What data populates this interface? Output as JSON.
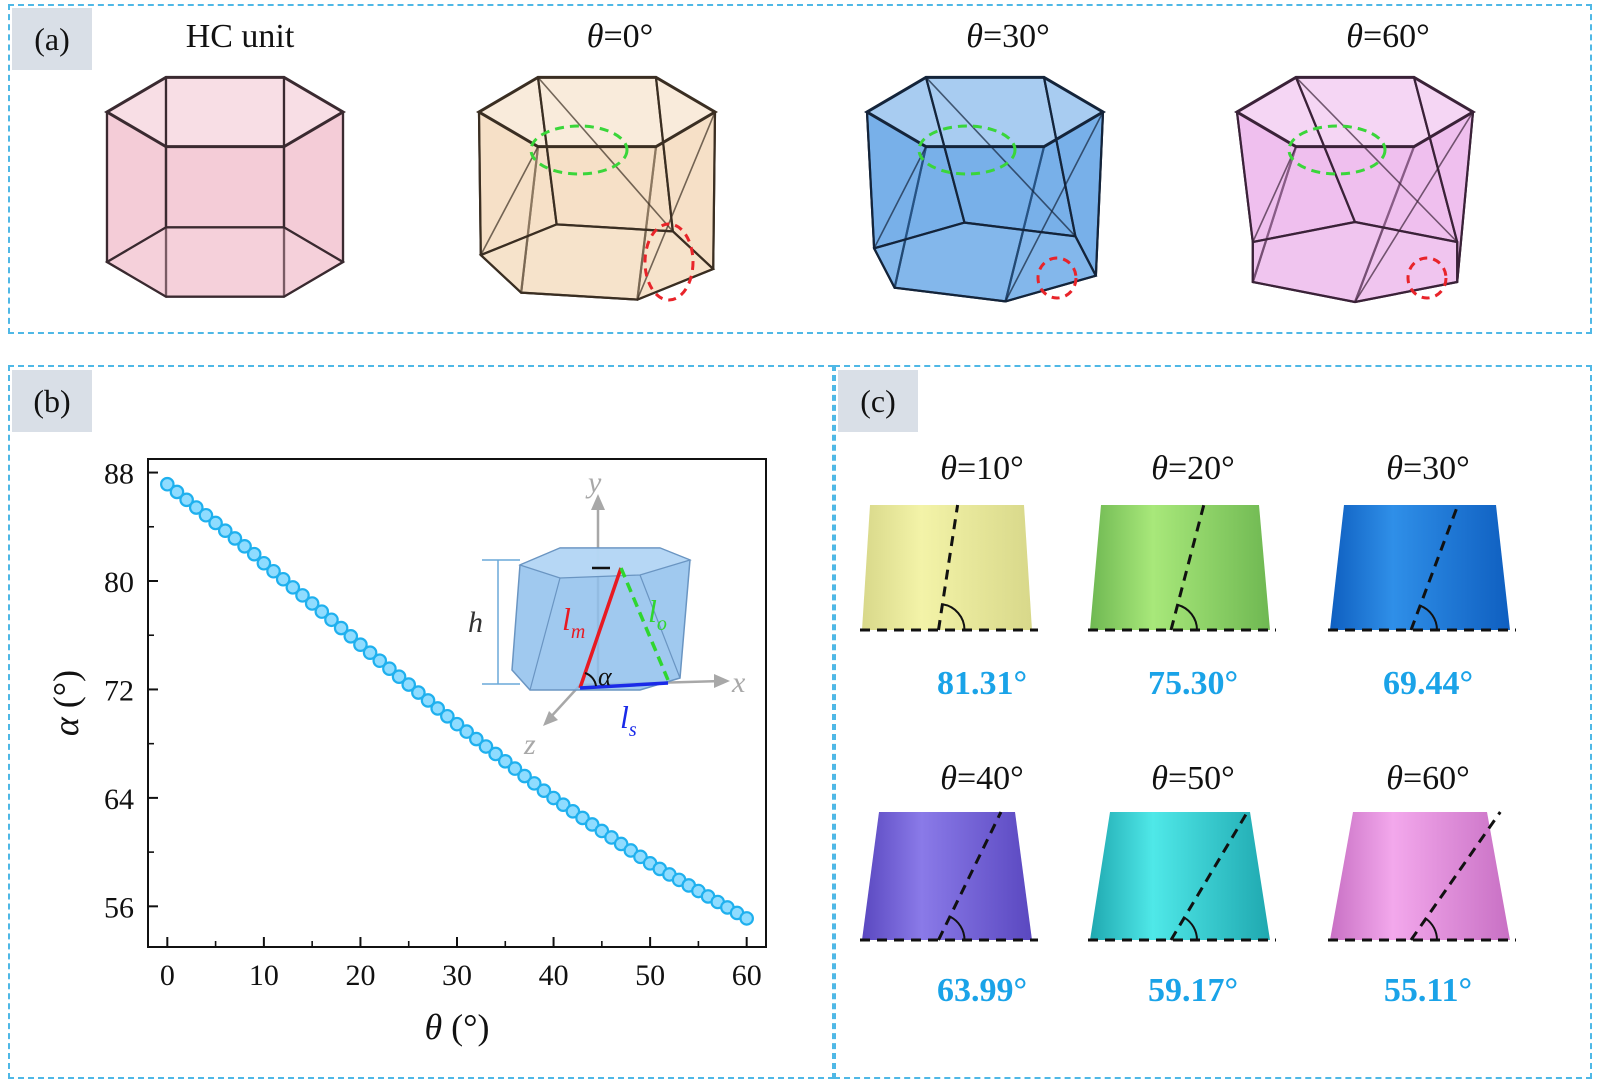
{
  "panel_a": {
    "tag": "(a)",
    "units": [
      {
        "theta": "HC unit",
        "title": "HC unit",
        "color": "#f0b6c6",
        "edge": "#3a2a30",
        "twist": 0
      },
      {
        "theta": "0°",
        "title": "=0°",
        "color": "#f1d3b0",
        "edge": "#3a2e22",
        "twist": 1
      },
      {
        "theta": "30°",
        "title": "=30°",
        "color": "#3f8fe0",
        "edge": "#14243a",
        "twist": 2
      },
      {
        "theta": "60°",
        "title": "=60°",
        "color": "#e9a5e6",
        "edge": "#3a2238",
        "twist": 3
      }
    ]
  },
  "panel_b": {
    "tag": "(b)",
    "inset": {
      "y": "y",
      "x": "x",
      "z": "z",
      "h": "h",
      "lm": "l",
      "lm_sub": "m",
      "lo": "l",
      "lo_sub": "o",
      "ls": "l",
      "ls_sub": "s",
      "alpha": "α"
    }
  },
  "panel_c": {
    "tag": "(c)",
    "items": [
      {
        "title": "=10°",
        "value": "81.31°",
        "c1": "#f3f3a8",
        "c2": "#d8d88a",
        "angle": 81.31
      },
      {
        "title": "=20°",
        "value": "75.30°",
        "c1": "#a8e87a",
        "c2": "#6fb852",
        "angle": 75.3
      },
      {
        "title": "=30°",
        "value": "69.44°",
        "c1": "#2f8fe8",
        "c2": "#0f5fc0",
        "angle": 69.44
      },
      {
        "title": "=40°",
        "value": "63.99°",
        "c1": "#8a7ae8",
        "c2": "#5a48c0",
        "angle": 63.99
      },
      {
        "title": "=50°",
        "value": "59.17°",
        "c1": "#4fe8e8",
        "c2": "#1fa8b0",
        "angle": 59.17
      },
      {
        "title": "=60°",
        "value": "55.11°",
        "c1": "#f3a8ec",
        "c2": "#c870c4",
        "angle": 55.11
      }
    ]
  },
  "chart_data": {
    "type": "scatter",
    "xlabel": "θ (°)",
    "ylabel": "α (°)",
    "xlim": [
      -2,
      62
    ],
    "ylim": [
      53,
      89
    ],
    "xticks": [
      0,
      10,
      20,
      30,
      40,
      50,
      60
    ],
    "yticks": [
      56,
      64,
      72,
      80,
      88
    ],
    "color": "#1fb0ee",
    "x": [
      0,
      1,
      2,
      3,
      4,
      5,
      6,
      7,
      8,
      9,
      10,
      11,
      12,
      13,
      14,
      15,
      16,
      17,
      18,
      19,
      20,
      21,
      22,
      23,
      24,
      25,
      26,
      27,
      28,
      29,
      30,
      31,
      32,
      33,
      34,
      35,
      36,
      37,
      38,
      39,
      40,
      41,
      42,
      43,
      44,
      45,
      46,
      47,
      48,
      49,
      50,
      51,
      52,
      53,
      54,
      55,
      56,
      57,
      58,
      59,
      60
    ],
    "y": [
      87.14,
      86.57,
      85.99,
      85.42,
      84.85,
      84.28,
      83.71,
      83.14,
      82.56,
      81.98,
      81.31,
      80.72,
      80.13,
      79.53,
      78.94,
      78.34,
      77.74,
      77.14,
      76.53,
      75.92,
      75.3,
      74.71,
      74.12,
      73.53,
      72.94,
      72.36,
      71.77,
      71.19,
      70.6,
      70.02,
      69.44,
      68.89,
      68.34,
      67.79,
      67.24,
      66.7,
      66.16,
      65.61,
      65.07,
      64.53,
      63.99,
      63.5,
      63.01,
      62.52,
      62.04,
      61.56,
      61.08,
      60.6,
      60.12,
      59.65,
      59.17,
      58.76,
      58.35,
      57.95,
      57.54,
      57.13,
      56.73,
      56.32,
      55.92,
      55.51,
      55.11
    ]
  }
}
